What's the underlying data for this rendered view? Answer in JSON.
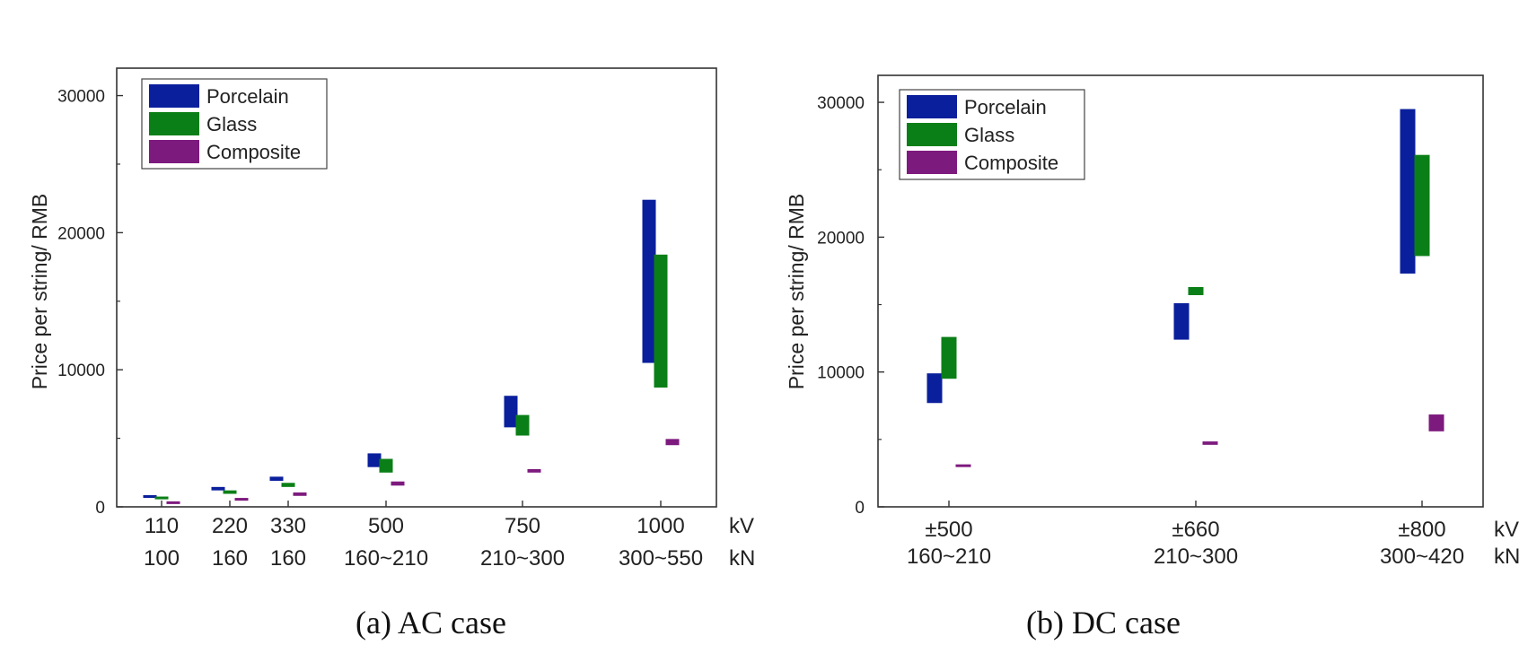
{
  "chart_data": [
    {
      "type": "bar",
      "subtype": "floating-range",
      "caption": "(a) AC case",
      "ylabel": "Price per string/ RMB",
      "ylim": [
        0,
        32000
      ],
      "yticks": [
        "0",
        "10000",
        "20000",
        "30000"
      ],
      "x_unit_labels": [
        "kV",
        "kN"
      ],
      "categories": [
        {
          "kv": "110",
          "kn": "100"
        },
        {
          "kv": "220",
          "kn": "160"
        },
        {
          "kv": "330",
          "kn": "160"
        },
        {
          "kv": "500",
          "kn": "160~210"
        },
        {
          "kv": "750",
          "kn": "210~300"
        },
        {
          "kv": "1000",
          "kn": "300~550"
        }
      ],
      "series": [
        {
          "name": "Porcelain",
          "color": "#0a1f9c",
          "ranges": [
            [
              650,
              850
            ],
            [
              1200,
              1450
            ],
            [
              1900,
              2200
            ],
            [
              2900,
              3900
            ],
            [
              5800,
              8100
            ],
            [
              10500,
              22400
            ]
          ]
        },
        {
          "name": "Glass",
          "color": "#0b7f17",
          "ranges": [
            [
              550,
              750
            ],
            [
              950,
              1200
            ],
            [
              1450,
              1750
            ],
            [
              2500,
              3500
            ],
            [
              5200,
              6700
            ],
            [
              8700,
              18400
            ]
          ]
        },
        {
          "name": "Composite",
          "color": "#7d1a7e",
          "ranges": [
            [
              250,
              400
            ],
            [
              450,
              650
            ],
            [
              800,
              1050
            ],
            [
              1550,
              1850
            ],
            [
              2500,
              2750
            ],
            [
              4500,
              4950
            ]
          ]
        }
      ],
      "legend": "top-left"
    },
    {
      "type": "bar",
      "subtype": "floating-range",
      "caption": "(b) DC case",
      "ylabel": "Price per string/ RMB",
      "ylim": [
        0,
        32000
      ],
      "yticks": [
        "0",
        "10000",
        "20000",
        "30000"
      ],
      "x_unit_labels": [
        "kV",
        "kN"
      ],
      "categories": [
        {
          "kv": "±500",
          "kn": "160~210"
        },
        {
          "kv": "±660",
          "kn": "210~300"
        },
        {
          "kv": "±800",
          "kn": "300~420"
        }
      ],
      "series": [
        {
          "name": "Porcelain",
          "color": "#0a1f9c",
          "ranges": [
            [
              7700,
              9900
            ],
            [
              12400,
              15100
            ],
            [
              17300,
              29500
            ]
          ]
        },
        {
          "name": "Glass",
          "color": "#0b7f17",
          "ranges": [
            [
              9500,
              12600
            ],
            [
              15700,
              16300
            ],
            [
              18600,
              26100
            ]
          ]
        },
        {
          "name": "Composite",
          "color": "#7d1a7e",
          "ranges": [
            [
              2950,
              3150
            ],
            [
              4600,
              4850
            ],
            [
              5600,
              6850
            ]
          ]
        }
      ],
      "legend": "top-left"
    }
  ]
}
